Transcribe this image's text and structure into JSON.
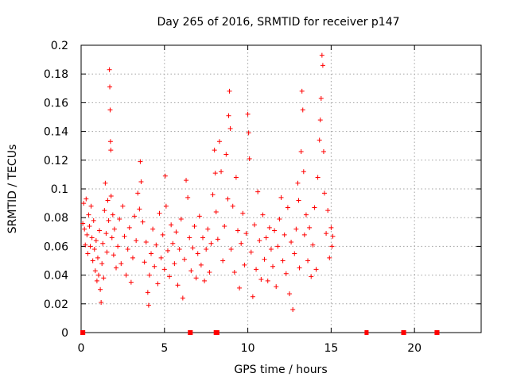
{
  "chart_data": {
    "type": "scatter",
    "title": "Day 265 of 2016, SRMTID for receiver p147",
    "xlabel": "GPS time / hours",
    "ylabel": "SRMTID / TECUs",
    "xlim": [
      0,
      24
    ],
    "ylim": [
      0,
      0.2
    ],
    "x_ticks": [
      "0",
      "5",
      "10",
      "15",
      "20"
    ],
    "x_tick_values": [
      0,
      5,
      10,
      15,
      20
    ],
    "y_ticks": [
      "0",
      "0.02",
      "0.04",
      "0.06",
      "0.08",
      "0.1",
      "0.12",
      "0.14",
      "0.16",
      "0.18",
      "0.2"
    ],
    "y_tick_values": [
      0,
      0.02,
      0.04,
      0.06,
      0.08,
      0.1,
      0.12,
      0.14,
      0.16,
      0.18,
      0.2
    ],
    "grid": true,
    "marker": "+",
    "color": "#ff0000",
    "series": [
      {
        "name": "SRMTID",
        "points": [
          [
            0.1,
            0.076
          ],
          [
            0.15,
            0.09
          ],
          [
            0.2,
            0.072
          ],
          [
            0.25,
            0.061
          ],
          [
            0.3,
            0.093
          ],
          [
            0.35,
            0.068
          ],
          [
            0.4,
            0.055
          ],
          [
            0.45,
            0.082
          ],
          [
            0.5,
            0.074
          ],
          [
            0.55,
            0.06
          ],
          [
            0.6,
            0.088
          ],
          [
            0.65,
            0.066
          ],
          [
            0.7,
            0.05
          ],
          [
            0.75,
            0.078
          ],
          [
            0.8,
            0.058
          ],
          [
            0.85,
            0.043
          ],
          [
            0.9,
            0.064
          ],
          [
            0.95,
            0.036
          ],
          [
            1.0,
            0.052
          ],
          [
            1.05,
            0.04
          ],
          [
            1.1,
            0.071
          ],
          [
            1.15,
            0.03
          ],
          [
            1.2,
            0.021
          ],
          [
            1.25,
            0.048
          ],
          [
            1.3,
            0.062
          ],
          [
            1.35,
            0.038
          ],
          [
            1.4,
            0.085
          ],
          [
            1.45,
            0.104
          ],
          [
            1.5,
            0.069
          ],
          [
            1.55,
            0.056
          ],
          [
            1.6,
            0.092
          ],
          [
            1.65,
            0.078
          ],
          [
            1.7,
            0.183
          ],
          [
            1.72,
            0.171
          ],
          [
            1.74,
            0.155
          ],
          [
            1.76,
            0.133
          ],
          [
            1.78,
            0.127
          ],
          [
            1.8,
            0.095
          ],
          [
            1.85,
            0.066
          ],
          [
            1.9,
            0.082
          ],
          [
            1.95,
            0.054
          ],
          [
            2.0,
            0.072
          ],
          [
            2.1,
            0.045
          ],
          [
            2.2,
            0.06
          ],
          [
            2.3,
            0.079
          ],
          [
            2.4,
            0.048
          ],
          [
            2.5,
            0.088
          ],
          [
            2.6,
            0.067
          ],
          [
            2.7,
            0.04
          ],
          [
            2.8,
            0.058
          ],
          [
            2.9,
            0.073
          ],
          [
            3.0,
            0.035
          ],
          [
            3.1,
            0.052
          ],
          [
            3.2,
            0.081
          ],
          [
            3.3,
            0.064
          ],
          [
            3.4,
            0.097
          ],
          [
            3.5,
            0.086
          ],
          [
            3.55,
            0.119
          ],
          [
            3.6,
            0.105
          ],
          [
            3.7,
            0.077
          ],
          [
            3.8,
            0.049
          ],
          [
            3.9,
            0.063
          ],
          [
            4.0,
            0.028
          ],
          [
            4.05,
            0.019
          ],
          [
            4.1,
            0.04
          ],
          [
            4.2,
            0.055
          ],
          [
            4.3,
            0.072
          ],
          [
            4.4,
            0.046
          ],
          [
            4.5,
            0.061
          ],
          [
            4.6,
            0.034
          ],
          [
            4.7,
            0.083
          ],
          [
            4.8,
            0.052
          ],
          [
            4.9,
            0.068
          ],
          [
            5.0,
            0.044
          ],
          [
            5.05,
            0.109
          ],
          [
            5.1,
            0.088
          ],
          [
            5.2,
            0.057
          ],
          [
            5.3,
            0.039
          ],
          [
            5.4,
            0.075
          ],
          [
            5.5,
            0.062
          ],
          [
            5.6,
            0.048
          ],
          [
            5.7,
            0.07
          ],
          [
            5.8,
            0.033
          ],
          [
            5.9,
            0.058
          ],
          [
            6.0,
            0.079
          ],
          [
            6.1,
            0.024
          ],
          [
            6.2,
            0.051
          ],
          [
            6.3,
            0.106
          ],
          [
            6.4,
            0.094
          ],
          [
            6.5,
            0.066
          ],
          [
            6.6,
            0.043
          ],
          [
            6.7,
            0.059
          ],
          [
            6.8,
            0.074
          ],
          [
            6.9,
            0.038
          ],
          [
            7.0,
            0.055
          ],
          [
            7.1,
            0.081
          ],
          [
            7.2,
            0.047
          ],
          [
            7.3,
            0.066
          ],
          [
            7.4,
            0.036
          ],
          [
            7.5,
            0.058
          ],
          [
            7.6,
            0.072
          ],
          [
            7.7,
            0.042
          ],
          [
            7.8,
            0.062
          ],
          [
            7.9,
            0.096
          ],
          [
            8.0,
            0.127
          ],
          [
            8.05,
            0.111
          ],
          [
            8.1,
            0.084
          ],
          [
            8.2,
            0.065
          ],
          [
            8.3,
            0.133
          ],
          [
            8.4,
            0.112
          ],
          [
            8.5,
            0.05
          ],
          [
            8.6,
            0.074
          ],
          [
            8.7,
            0.124
          ],
          [
            8.8,
            0.093
          ],
          [
            8.85,
            0.151
          ],
          [
            8.9,
            0.168
          ],
          [
            8.95,
            0.142
          ],
          [
            9.0,
            0.058
          ],
          [
            9.1,
            0.088
          ],
          [
            9.2,
            0.042
          ],
          [
            9.3,
            0.108
          ],
          [
            9.4,
            0.071
          ],
          [
            9.5,
            0.031
          ],
          [
            9.6,
            0.062
          ],
          [
            9.7,
            0.083
          ],
          [
            9.8,
            0.047
          ],
          [
            9.9,
            0.069
          ],
          [
            10.0,
            0.152
          ],
          [
            10.05,
            0.139
          ],
          [
            10.1,
            0.121
          ],
          [
            10.2,
            0.056
          ],
          [
            10.3,
            0.025
          ],
          [
            10.4,
            0.075
          ],
          [
            10.5,
            0.044
          ],
          [
            10.6,
            0.098
          ],
          [
            10.7,
            0.064
          ],
          [
            10.8,
            0.037
          ],
          [
            10.9,
            0.082
          ],
          [
            11.0,
            0.051
          ],
          [
            11.1,
            0.066
          ],
          [
            11.2,
            0.036
          ],
          [
            11.3,
            0.073
          ],
          [
            11.4,
            0.058
          ],
          [
            11.5,
            0.046
          ],
          [
            11.6,
            0.071
          ],
          [
            11.7,
            0.032
          ],
          [
            11.8,
            0.06
          ],
          [
            11.9,
            0.079
          ],
          [
            12.0,
            0.094
          ],
          [
            12.1,
            0.05
          ],
          [
            12.2,
            0.068
          ],
          [
            12.3,
            0.041
          ],
          [
            12.4,
            0.087
          ],
          [
            12.5,
            0.027
          ],
          [
            12.6,
            0.063
          ],
          [
            12.7,
            0.016
          ],
          [
            12.8,
            0.055
          ],
          [
            12.9,
            0.072
          ],
          [
            13.0,
            0.104
          ],
          [
            13.05,
            0.092
          ],
          [
            13.1,
            0.045
          ],
          [
            13.2,
            0.126
          ],
          [
            13.25,
            0.168
          ],
          [
            13.3,
            0.155
          ],
          [
            13.35,
            0.112
          ],
          [
            13.4,
            0.068
          ],
          [
            13.5,
            0.082
          ],
          [
            13.6,
            0.05
          ],
          [
            13.7,
            0.073
          ],
          [
            13.8,
            0.039
          ],
          [
            13.9,
            0.061
          ],
          [
            14.0,
            0.087
          ],
          [
            14.1,
            0.044
          ],
          [
            14.2,
            0.108
          ],
          [
            14.3,
            0.134
          ],
          [
            14.35,
            0.148
          ],
          [
            14.4,
            0.163
          ],
          [
            14.45,
            0.193
          ],
          [
            14.5,
            0.186
          ],
          [
            14.55,
            0.126
          ],
          [
            14.6,
            0.097
          ],
          [
            14.7,
            0.069
          ],
          [
            14.8,
            0.085
          ],
          [
            14.9,
            0.052
          ],
          [
            15.0,
            0.073
          ],
          [
            15.05,
            0.06
          ],
          [
            15.1,
            0.067
          ]
        ]
      }
    ],
    "zero_segments": [
      [
        0.05,
        0.15
      ],
      [
        6.5,
        6.6
      ],
      [
        8.05,
        8.2
      ],
      [
        17.1,
        17.15
      ],
      [
        19.3,
        19.4
      ],
      [
        21.3,
        21.4
      ]
    ]
  }
}
